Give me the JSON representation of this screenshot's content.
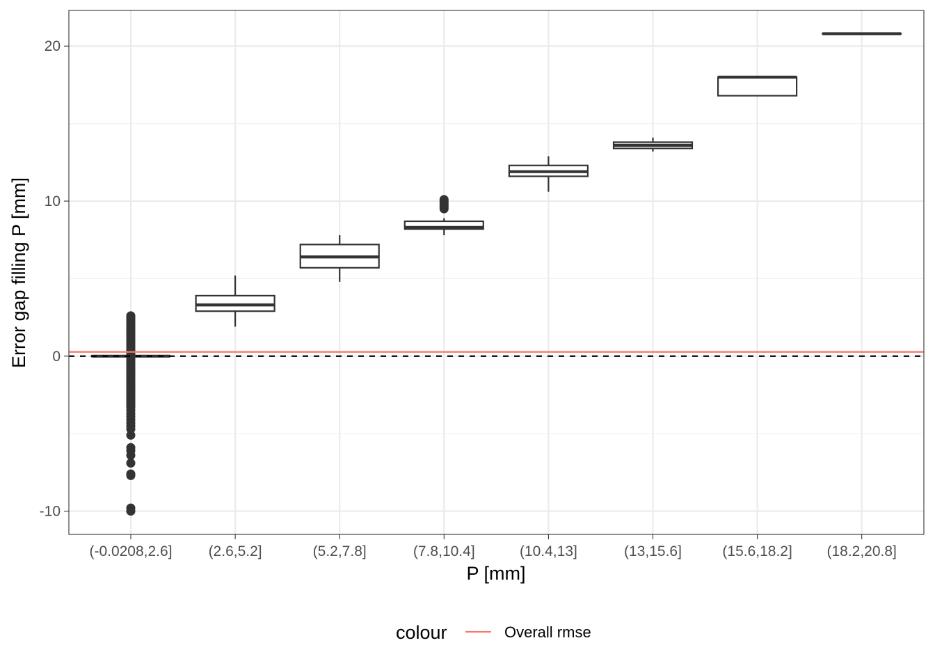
{
  "chart_data": {
    "type": "boxplot",
    "title": "",
    "xlabel": "P [mm]",
    "ylabel": "Error gap filling P [mm]",
    "ylim": [
      -11.5,
      22.3
    ],
    "yticks": [
      -10,
      0,
      10,
      20
    ],
    "ytick_labels": [
      "-10",
      "0",
      "10",
      "20"
    ],
    "grid": true,
    "categories": [
      "(-0.0208,2.6]",
      "(2.6,5.2]",
      "(5.2,7.8]",
      "(7.8,10.4]",
      "(10.4,13]",
      "(13,15.6]",
      "(15.6,18.2]",
      "(18.2,20.8]"
    ],
    "boxes": [
      {
        "low": 0,
        "q1": 0,
        "median": 0,
        "q3": 0,
        "high": 0
      },
      {
        "low": 1.9,
        "q1": 2.9,
        "median": 3.3,
        "q3": 3.9,
        "high": 5.2
      },
      {
        "low": 4.8,
        "q1": 5.7,
        "median": 6.4,
        "q3": 7.2,
        "high": 7.8
      },
      {
        "low": 7.8,
        "q1": 8.2,
        "median": 8.3,
        "q3": 8.7,
        "high": 8.9
      },
      {
        "low": 10.6,
        "q1": 11.6,
        "median": 11.9,
        "q3": 12.3,
        "high": 12.9
      },
      {
        "low": 13.2,
        "q1": 13.4,
        "median": 13.6,
        "q3": 13.8,
        "high": 14.1
      },
      {
        "low": 16.8,
        "q1": 16.8,
        "median": 18.0,
        "q3": 18.0,
        "high": 18.0
      },
      {
        "low": 20.8,
        "q1": 20.8,
        "median": 20.8,
        "q3": 20.8,
        "high": 20.8
      }
    ],
    "outliers": [
      {
        "category": 0,
        "values": [
          2.6,
          2.5,
          2.4,
          2.3,
          2.2,
          2.1,
          2.0,
          1.9,
          1.8,
          1.7,
          1.6,
          1.5,
          1.4,
          1.3,
          1.2,
          1.1,
          1.0,
          0.9,
          0.8,
          0.7,
          0.6,
          0.5,
          0.4,
          0.3,
          0.2,
          0.1,
          -0.1,
          -0.2,
          -0.3,
          -0.4,
          -0.5,
          -0.6,
          -0.7,
          -0.8,
          -0.9,
          -1.0,
          -1.1,
          -1.2,
          -1.3,
          -1.4,
          -1.5,
          -1.6,
          -1.7,
          -1.8,
          -1.9,
          -2.0,
          -2.1,
          -2.2,
          -2.3,
          -2.4,
          -2.5,
          -2.6,
          -2.7,
          -2.8,
          -2.9,
          -3.0,
          -3.1,
          -3.2,
          -3.3,
          -3.5,
          -3.7,
          -3.9,
          -4.1,
          -4.3,
          -4.5,
          -4.7,
          -5.1,
          -5.9,
          -6.1,
          -6.4,
          -6.9,
          -7.6,
          -7.7,
          -9.8,
          -10.0
        ]
      },
      {
        "category": 3,
        "values": [
          9.5,
          9.6,
          9.7,
          9.8,
          9.9,
          10.0,
          10.1
        ]
      }
    ],
    "reference_line": {
      "value": 0,
      "style": "dashed",
      "color": "#000000"
    },
    "overall_rmse": {
      "value": 0.27,
      "color": "#F8766D",
      "label": "Overall rmse"
    },
    "legend": {
      "title": "colour",
      "entries": [
        "Overall rmse"
      ],
      "position": "bottom"
    }
  }
}
